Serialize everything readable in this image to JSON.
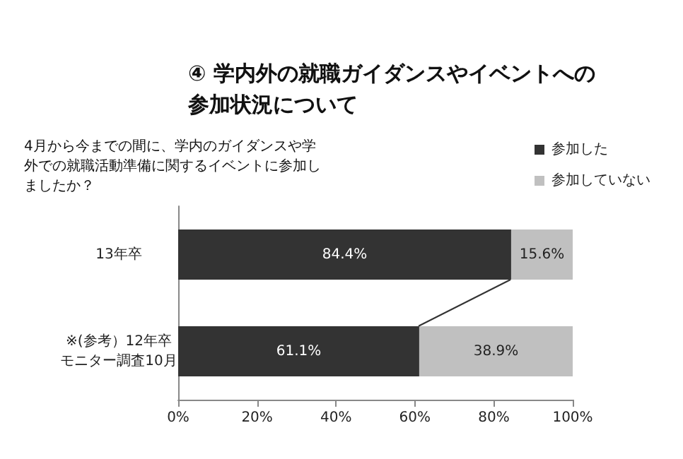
{
  "chart_data": {
    "type": "bar",
    "orientation": "horizontal",
    "stacked": true,
    "title": "④ 学内外の就職ガイダンスやイベントへの参加状況について",
    "subtitle": "4月から今までの間に、学内のガイダンスや学外での就職活動準備に関するイベントに参加しましたか？",
    "categories": [
      "13年卒",
      "※(参考）12年卒モニター調査10月"
    ],
    "series": [
      {
        "name": "参加した",
        "color": "#333333",
        "values": [
          84.4,
          61.1
        ],
        "value_labels": [
          "84.4%",
          "61.1%"
        ]
      },
      {
        "name": "参加していない",
        "color": "#c0c0c0",
        "values": [
          15.6,
          38.9
        ],
        "value_labels": [
          "15.6%",
          "38.9%"
        ]
      }
    ],
    "xlim": [
      0,
      100
    ],
    "xticks": [
      {
        "value": 0,
        "label": "0%"
      },
      {
        "value": 20,
        "label": "20%"
      },
      {
        "value": 40,
        "label": "40%"
      },
      {
        "value": 60,
        "label": "60%"
      },
      {
        "value": 80,
        "label": "80%"
      },
      {
        "value": 100,
        "label": "100%"
      }
    ],
    "legend": "top right",
    "grid": false
  }
}
